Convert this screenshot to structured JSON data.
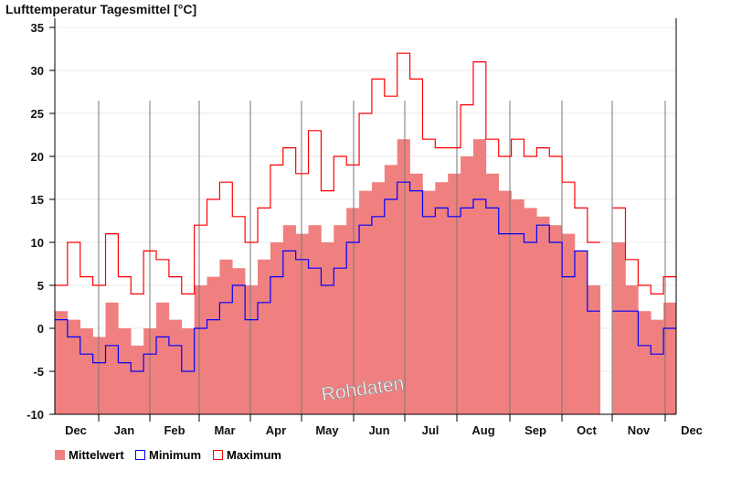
{
  "chart_data": {
    "type": "bar",
    "title": "Lufttemperatur Tagesmittel [°C]",
    "xlabel": "",
    "ylabel": "°C",
    "ylim": [
      -10,
      35
    ],
    "yticks": [
      -10,
      -5,
      0,
      5,
      10,
      15,
      20,
      25,
      30,
      35
    ],
    "months": [
      "Dec",
      "Jan",
      "Feb",
      "Mar",
      "Apr",
      "May",
      "Jun",
      "Jul",
      "Aug",
      "Sep",
      "Oct",
      "Nov",
      "Dec"
    ],
    "resolution": "weekly (approximated)",
    "watermark": "Rohdaten",
    "colors": {
      "mean": "#f08080",
      "min": "#0000ff",
      "max": "#ff0000"
    },
    "series": [
      {
        "name": "Mittelwert",
        "values": [
          2,
          1,
          0,
          -1,
          3,
          0,
          -2,
          0,
          3,
          1,
          0,
          5,
          6,
          8,
          7,
          5,
          8,
          10,
          12,
          11,
          12,
          10,
          12,
          14,
          16,
          17,
          19,
          22,
          18,
          16,
          17,
          18,
          20,
          22,
          18,
          16,
          15,
          14,
          13,
          12,
          11,
          9,
          5,
          null,
          10,
          5,
          2,
          1,
          3
        ]
      },
      {
        "name": "Minimum",
        "values": [
          1,
          -1,
          -3,
          -4,
          -2,
          -4,
          -5,
          -3,
          -1,
          -2,
          -5,
          0,
          1,
          3,
          5,
          1,
          3,
          6,
          9,
          8,
          7,
          5,
          7,
          10,
          12,
          13,
          15,
          17,
          16,
          13,
          14,
          13,
          14,
          15,
          14,
          11,
          11,
          10,
          12,
          10,
          6,
          9,
          2,
          null,
          2,
          2,
          -2,
          -3,
          0
        ]
      },
      {
        "name": "Maximum",
        "values": [
          5,
          10,
          6,
          5,
          11,
          6,
          4,
          9,
          8,
          6,
          4,
          12,
          15,
          17,
          13,
          10,
          14,
          19,
          21,
          18,
          23,
          16,
          20,
          19,
          25,
          29,
          27,
          32,
          29,
          22,
          21,
          21,
          26,
          31,
          22,
          20,
          22,
          20,
          21,
          20,
          17,
          14,
          10,
          null,
          14,
          8,
          5,
          4,
          6
        ]
      }
    ]
  }
}
